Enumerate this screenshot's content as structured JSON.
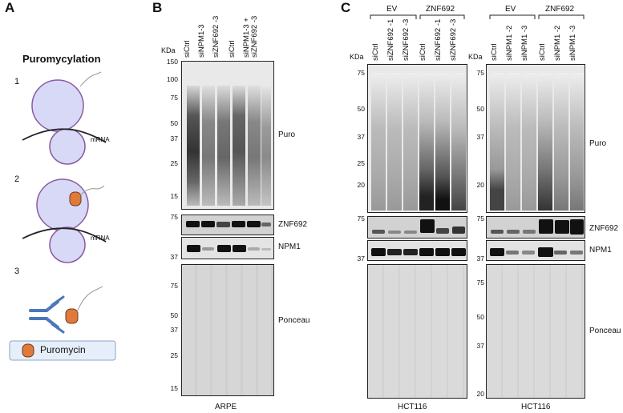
{
  "panelA": {
    "letter": "A",
    "title": "Puromycylation",
    "steps": [
      "1",
      "2",
      "3"
    ],
    "mrna_label": "mRNA",
    "legend_label": "Puromycin"
  },
  "panelB": {
    "letter": "B",
    "kda": "KDa",
    "lanes": [
      "siCtrl",
      "siNPM1-3",
      "siZNF692 -3",
      "siCtrl",
      "siNPM1-3 +",
      "siZNF692 -3"
    ],
    "mw_puro": [
      "150",
      "100",
      "75",
      "50",
      "37",
      "25",
      "15"
    ],
    "mw_znf": "75",
    "mw_npm": "37",
    "mw_ponceau": [
      "75",
      "50",
      "37",
      "25",
      "15"
    ],
    "blots": [
      "Puro",
      "ZNF692",
      "NPM1",
      "Ponceau"
    ],
    "cell_line": "ARPE"
  },
  "panelC": {
    "letter": "C",
    "left": {
      "group1": "EV",
      "group2": "ZNF692",
      "kda": "KDa",
      "lanes": [
        "siCtrl",
        "siZNF692 -1",
        "siZNF692 -3",
        "siCtrl",
        "siZNF692 -1",
        "siZNF692 -3"
      ],
      "mw_puro": [
        "75",
        "50",
        "37",
        "25",
        "20"
      ],
      "mw_znf": "75",
      "mw_npm": "37",
      "cell_line": "HCT116"
    },
    "right": {
      "group1": "EV",
      "group2": "ZNF692",
      "kda": "KDa",
      "lanes": [
        "siCtrl",
        "siNPM1 -2",
        "siNPM1 -3",
        "siCtrl",
        "siNPM1 -2",
        "siNPM1 -3"
      ],
      "mw_puro": [
        "75",
        "50",
        "37",
        "20"
      ],
      "mw_znf": "75",
      "mw_npm": "37",
      "mw_ponceau": [
        "75",
        "50",
        "37",
        "20"
      ],
      "cell_line": "HCT116"
    },
    "blots": [
      "Puro",
      "ZNF692",
      "NPM1",
      "Ponceau"
    ]
  }
}
